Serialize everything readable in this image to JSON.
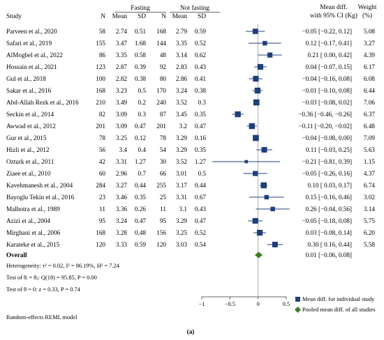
{
  "chart_data": {
    "type": "forest",
    "header": {
      "study": "Study",
      "group1": "Fasting",
      "group2": "Not fasting",
      "n": "N",
      "mean": "Mean",
      "sd": "SD",
      "effect": "Mean diff.",
      "effect_sub": "with 95% CI (Kg)",
      "weight": "Weight",
      "weight_sub": "(%)"
    },
    "studies": [
      {
        "name": "Parveen et al., 2020",
        "n1": "58",
        "mean1": "2.74",
        "sd1": "0.51",
        "n2": "168",
        "mean2": "2.79",
        "sd2": "0.59",
        "md": -0.05,
        "lo": -0.22,
        "hi": 0.12,
        "ci_text": "−0.05 [−0.22,  0.12]",
        "weight": 5.08,
        "weight_text": "5.08"
      },
      {
        "name": "Safari et al., 2019",
        "n1": "155",
        "mean1": "3.47",
        "sd1": "1.68",
        "n2": "144",
        "mean2": "3.35",
        "sd2": "0.52",
        "md": 0.12,
        "lo": -0.17,
        "hi": 0.41,
        "ci_text": "0.12 [−0.17,  0.41]",
        "weight": 3.27,
        "weight_text": "3.27"
      },
      {
        "name": "AlMogbel et al., 2022",
        "n1": "86",
        "mean1": "3.35",
        "sd1": "0.58",
        "n2": "48",
        "mean2": "3.14",
        "sd2": "0.62",
        "md": 0.21,
        "lo": 0.0,
        "hi": 0.42,
        "ci_text": "0.21 [ 0.00,  0.42]",
        "weight": 4.39,
        "weight_text": "4.39"
      },
      {
        "name": "Hossain et al., 2021",
        "n1": "123",
        "mean1": "2.87",
        "sd1": "0.39",
        "n2": "92",
        "mean2": "2.83",
        "sd2": "0.43",
        "md": 0.04,
        "lo": -0.07,
        "hi": 0.15,
        "ci_text": "0.04 [−0.07,  0.15]",
        "weight": 6.17,
        "weight_text": "6.17"
      },
      {
        "name": "Gul  et al., 2018",
        "n1": "100",
        "mean1": "2.82",
        "sd1": "0.38",
        "n2": "80",
        "mean2": "2.86",
        "sd2": "0.41",
        "md": -0.04,
        "lo": -0.16,
        "hi": 0.08,
        "ci_text": "−0.04 [−0.16,  0.08]",
        "weight": 6.08,
        "weight_text": "6.08"
      },
      {
        "name": "Sakar et al., 2016",
        "n1": "168",
        "mean1": "3.23",
        "sd1": "0.5",
        "n2": "170",
        "mean2": "3.24",
        "sd2": "0.38",
        "md": -0.01,
        "lo": -0.1,
        "hi": 0.08,
        "ci_text": "−0.01 [−0.10,  0.08]",
        "weight": 6.44,
        "weight_text": "6.44"
      },
      {
        "name": "Abd-Allah Rezk  et al., 2016",
        "n1": "210",
        "mean1": "3.49",
        "sd1": "0.2",
        "n2": "240",
        "mean2": "3.52",
        "sd2": "0.3",
        "md": -0.03,
        "lo": -0.08,
        "hi": 0.02,
        "ci_text": "−0.03 [−0.08,  0.02]",
        "weight": 7.06,
        "weight_text": "7.06"
      },
      {
        "name": "Seckin et al., 2014",
        "n1": "82",
        "mean1": "3.09",
        "sd1": "0.3",
        "n2": "87",
        "mean2": "3.45",
        "sd2": "0.35",
        "md": -0.36,
        "lo": -0.46,
        "hi": -0.26,
        "ci_text": "−0.36 [−0.46, −0.26]",
        "weight": 6.37,
        "weight_text": "6.37"
      },
      {
        "name": "Awwad et al., 2012",
        "n1": "201",
        "mean1": "3.09",
        "sd1": "0.47",
        "n2": "201",
        "mean2": "3.2",
        "sd2": "0.47",
        "md": -0.11,
        "lo": -0.2,
        "hi": -0.02,
        "ci_text": "−0.11 [−0.20, −0.02]",
        "weight": 6.48,
        "weight_text": "6.48"
      },
      {
        "name": "Gur et al., 2015",
        "n1": "78",
        "mean1": "3.25",
        "sd1": "0.12",
        "n2": "78",
        "mean2": "3.29",
        "sd2": "0.16",
        "md": -0.04,
        "lo": -0.08,
        "hi": 0.0,
        "ci_text": "−0.04 [−0.08,  0.00]",
        "weight": 7.09,
        "weight_text": "7.09"
      },
      {
        "name": "Hizli et al., 2012",
        "n1": "56",
        "mean1": "3.4",
        "sd1": "0.4",
        "n2": "54",
        "mean2": "3.29",
        "sd2": "0.35",
        "md": 0.11,
        "lo": -0.03,
        "hi": 0.25,
        "ci_text": "0.11 [−0.03,  0.25]",
        "weight": 5.63,
        "weight_text": "5.63"
      },
      {
        "name": "Ozturk et al., 2011",
        "n1": "42",
        "mean1": "3.31",
        "sd1": "1.27",
        "n2": "30",
        "mean2": "3.52",
        "sd2": "1.27",
        "md": -0.21,
        "lo": -0.81,
        "hi": 0.39,
        "ci_text": "−0.21 [−0.81,  0.39]",
        "weight": 1.15,
        "weight_text": "1.15"
      },
      {
        "name": "Ziaee et al., 2010",
        "n1": "60",
        "mean1": "2.96",
        "sd1": "0.7",
        "n2": "66",
        "mean2": "3.01",
        "sd2": "0.5",
        "md": -0.05,
        "lo": -0.26,
        "hi": 0.16,
        "ci_text": "−0.05 [−0.26,  0.16]",
        "weight": 4.37,
        "weight_text": "4.37"
      },
      {
        "name": "Kavehmanesh et al., 2004",
        "n1": "284",
        "mean1": "3.27",
        "sd1": "0.44",
        "n2": "255",
        "mean2": "3.17",
        "sd2": "0.44",
        "md": 0.1,
        "lo": 0.03,
        "hi": 0.17,
        "ci_text": "0.10 [ 0.03,  0.17]",
        "weight": 6.74,
        "weight_text": "6.74"
      },
      {
        "name": "Bayoglu Tekin et al., 2016",
        "n1": "23",
        "mean1": "3.46",
        "sd1": "0.35",
        "n2": "25",
        "mean2": "3.31",
        "sd2": "0.67",
        "md": 0.15,
        "lo": -0.16,
        "hi": 0.46,
        "ci_text": "0.15 [−0.16,  0.46]",
        "weight": 3.02,
        "weight_text": "3.02"
      },
      {
        "name": "Malhotra et al., 1989",
        "n1": "11",
        "mean1": "3.36",
        "sd1": "0.26",
        "n2": "11",
        "mean2": "3.1",
        "sd2": "0.43",
        "md": 0.26,
        "lo": -0.04,
        "hi": 0.56,
        "ci_text": "0.26 [−0.04,  0.56]",
        "weight": 3.14,
        "weight_text": "3.14"
      },
      {
        "name": "Azizi et al., 2004",
        "n1": "95",
        "mean1": "3.24",
        "sd1": "0.47",
        "n2": "95",
        "mean2": "3.29",
        "sd2": "0.47",
        "md": -0.05,
        "lo": -0.18,
        "hi": 0.08,
        "ci_text": "−0.05 [−0.18,  0.08]",
        "weight": 5.75,
        "weight_text": "5.75"
      },
      {
        "name": "Mirghani et al., 2006",
        "n1": "168",
        "mean1": "3.28",
        "sd1": "0.48",
        "n2": "156",
        "mean2": "3.25",
        "sd2": "0.52",
        "md": 0.03,
        "lo": -0.08,
        "hi": 0.14,
        "ci_text": "0.03 [−0.08,  0.14]",
        "weight": 6.2,
        "weight_text": "6.20"
      },
      {
        "name": "Karateke et al., 2015",
        "n1": "120",
        "mean1": "3.33",
        "sd1": "0.59",
        "n2": "120",
        "mean2": "3.03",
        "sd2": "0.54",
        "md": 0.3,
        "lo": 0.16,
        "hi": 0.44,
        "ci_text": "0.30 [ 0.16,  0.44]",
        "weight": 5.58,
        "weight_text": "5.58"
      }
    ],
    "overall": {
      "label": "Overall",
      "md": 0.01,
      "lo": -0.06,
      "hi": 0.08,
      "ci_text": "0.01 [−0.06,  0.08]"
    },
    "stats": {
      "heterogeneity": "Heterogeneity: τ² = 0.02, I² = 86.19%, H² = 7.24",
      "homogeneity": "Test of θᵢ = θⱼ: Q(18) = 95.85, P = 0.00",
      "effect_test": "Test of θ = 0: z = 0.33, P = 0.74"
    },
    "x_axis": {
      "ticks": [
        -1,
        -0.5,
        0,
        0.5
      ],
      "tick_labels": [
        "−1",
        "−0.5",
        "0",
        "0.5"
      ],
      "range": [
        -1,
        0.5
      ]
    },
    "legend": [
      {
        "label": "Mean diff. for individual study",
        "marker": "square",
        "color": "#1f3f7a"
      },
      {
        "label": "Pooled mean diff. of all studies",
        "marker": "diamond",
        "color": "#3f7a2a"
      }
    ],
    "legend_position": "bottom-right",
    "model_note": "Random-effects REML model",
    "panel_label": "(a)",
    "colors": {
      "study": "#1f3f7a",
      "pooled": "#3f7a2a",
      "reference": "#999999"
    }
  }
}
